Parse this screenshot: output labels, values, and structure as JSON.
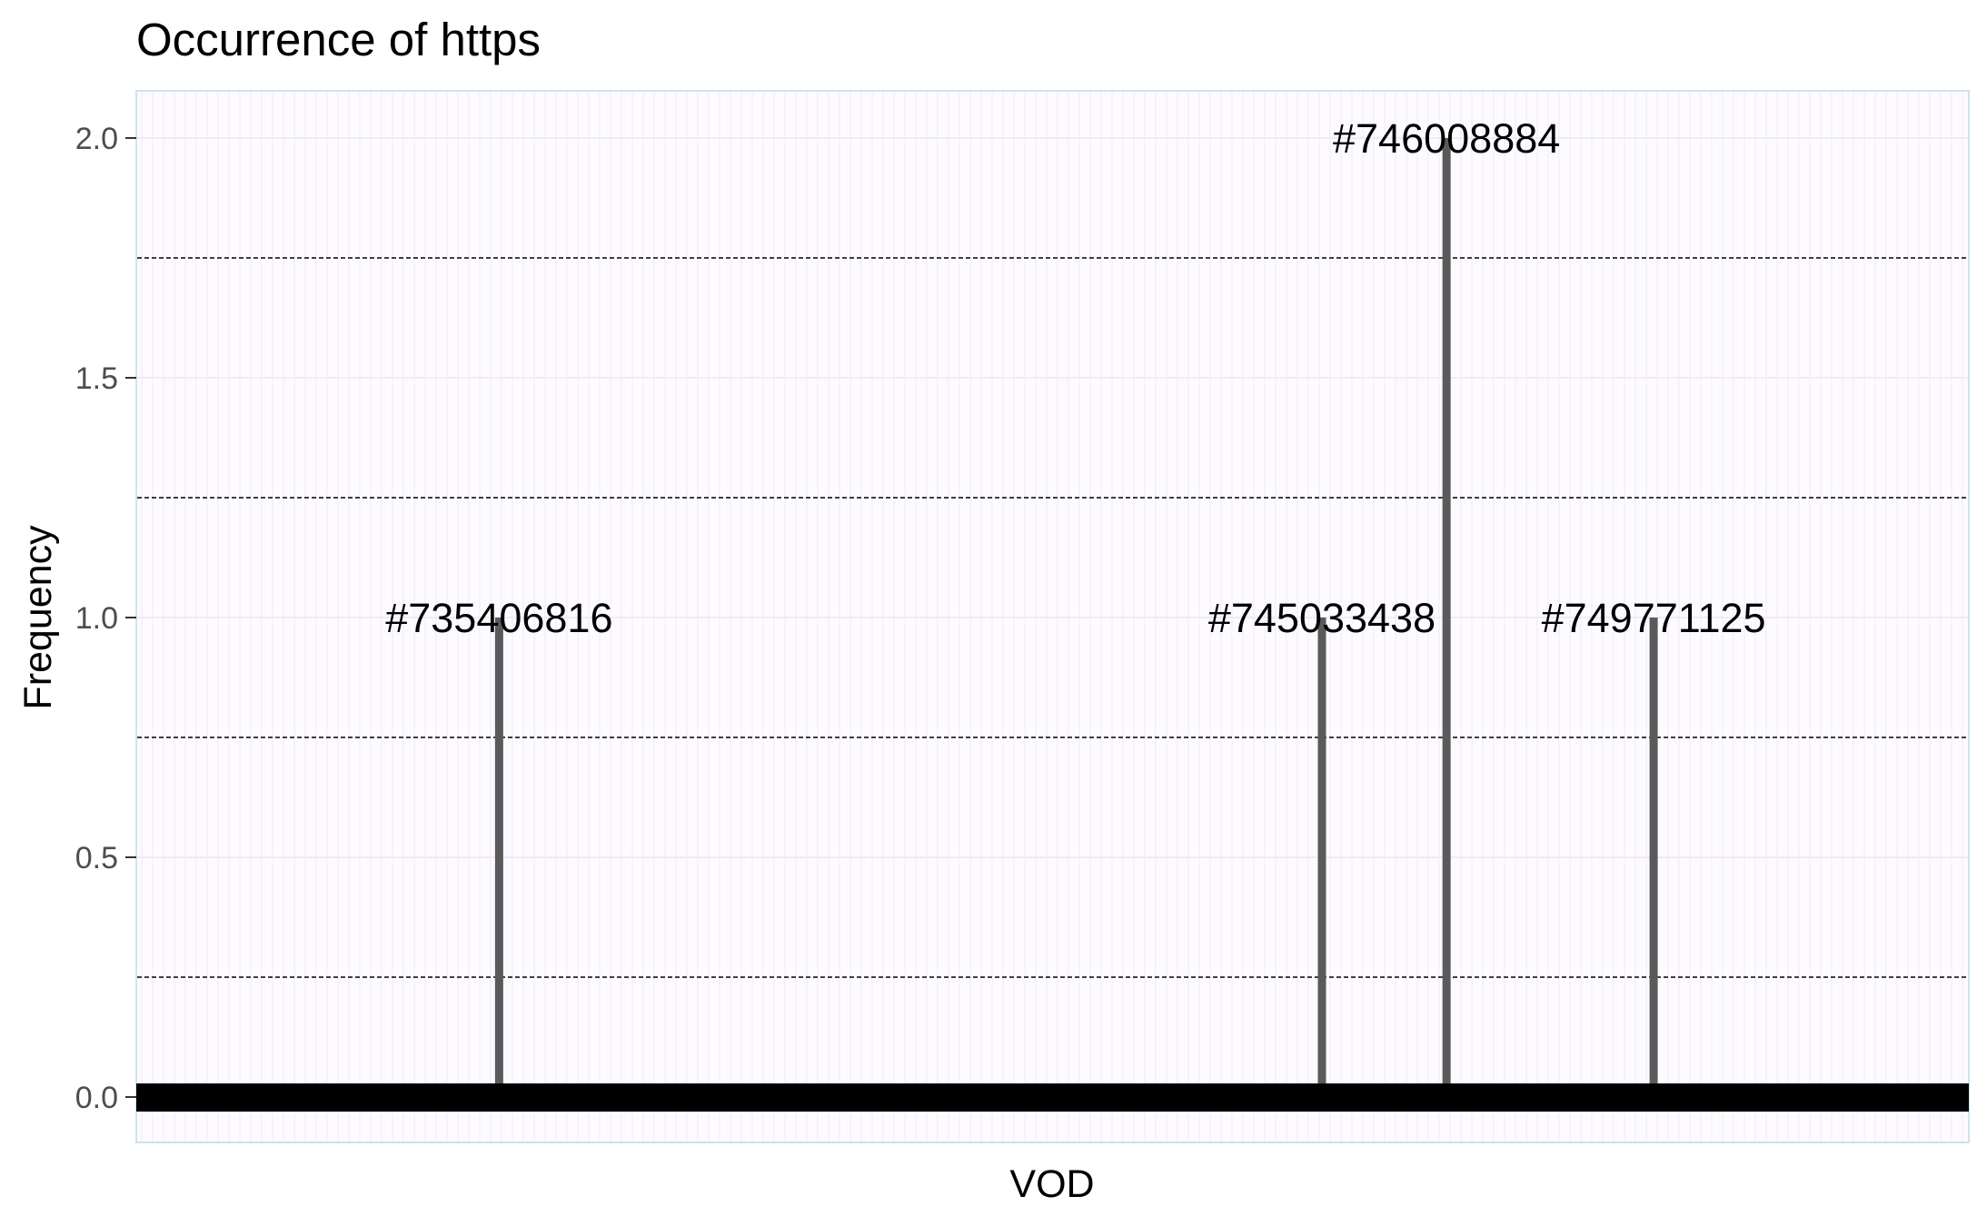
{
  "chart_data": {
    "type": "lollipop",
    "title": "Occurrence of https",
    "xlabel": "VOD",
    "ylabel": "Frequency",
    "ylim": [
      -0.1,
      2.1
    ],
    "yticks": [
      0.0,
      0.5,
      1.0,
      1.5,
      2.0
    ],
    "ytick_labels": [
      "0.0",
      "0.5",
      "1.0",
      "1.5",
      "2.0"
    ],
    "grid": "dashed horizontal minor gridlines",
    "baseline_value": 0,
    "series": [
      {
        "points": [
          {
            "label": "#735406816",
            "value": 1,
            "x_fraction": 0.198
          },
          {
            "label": "#745033438",
            "value": 1,
            "x_fraction": 0.647
          },
          {
            "label": "#746008884",
            "value": 2,
            "x_fraction": 0.715
          },
          {
            "label": "#749771125",
            "value": 1,
            "x_fraction": 0.828
          }
        ]
      }
    ],
    "colors": {
      "panel_background": "#fdfbff",
      "panel_border": "#cfe3ec",
      "stem": "#5a5a5a",
      "baseline": "#000000",
      "gridline": "#000000",
      "faint_grid": "#f0ebf5"
    }
  }
}
